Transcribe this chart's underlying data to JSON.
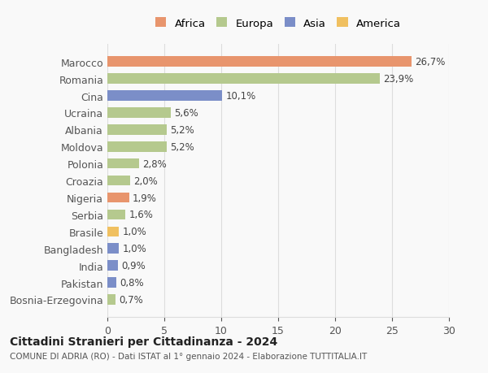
{
  "countries": [
    "Bosnia-Erzegovina",
    "Pakistan",
    "India",
    "Bangladesh",
    "Brasile",
    "Serbia",
    "Nigeria",
    "Croazia",
    "Polonia",
    "Moldova",
    "Albania",
    "Ucraina",
    "Cina",
    "Romania",
    "Marocco"
  ],
  "values": [
    0.7,
    0.8,
    0.9,
    1.0,
    1.0,
    1.6,
    1.9,
    2.0,
    2.8,
    5.2,
    5.2,
    5.6,
    10.1,
    23.9,
    26.7
  ],
  "labels": [
    "0,7%",
    "0,8%",
    "0,9%",
    "1,0%",
    "1,0%",
    "1,6%",
    "1,9%",
    "2,0%",
    "2,8%",
    "5,2%",
    "5,2%",
    "5,6%",
    "10,1%",
    "23,9%",
    "26,7%"
  ],
  "colors": [
    "#b5c98e",
    "#7b8ec8",
    "#7b8ec8",
    "#7b8ec8",
    "#f0c060",
    "#b5c98e",
    "#e8956d",
    "#b5c98e",
    "#b5c98e",
    "#b5c98e",
    "#b5c98e",
    "#b5c98e",
    "#7b8ec8",
    "#b5c98e",
    "#e8956d"
  ],
  "legend_labels": [
    "Africa",
    "Europa",
    "Asia",
    "America"
  ],
  "legend_colors": [
    "#e8956d",
    "#b5c98e",
    "#7b8ec8",
    "#f0c060"
  ],
  "xlim": [
    0,
    30
  ],
  "xticks": [
    0,
    5,
    10,
    15,
    20,
    25,
    30
  ],
  "title": "Cittadini Stranieri per Cittadinanza - 2024",
  "subtitle": "COMUNE DI ADRIA (RO) - Dati ISTAT al 1° gennaio 2024 - Elaborazione TUTTITALIA.IT",
  "background_color": "#f9f9f9",
  "grid_color": "#dddddd",
  "bar_height": 0.6
}
